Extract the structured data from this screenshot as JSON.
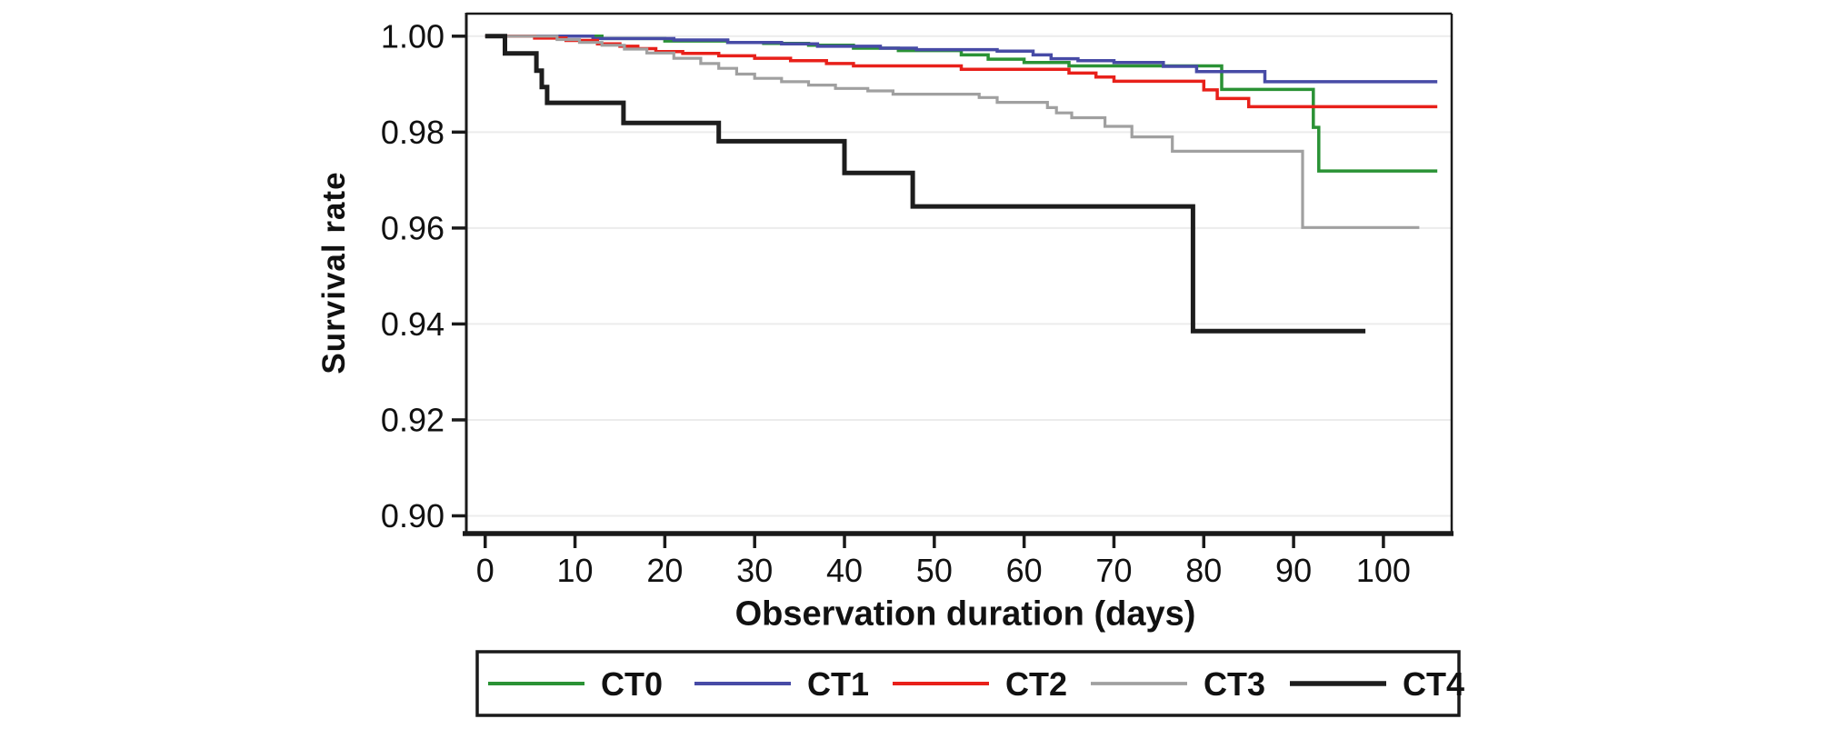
{
  "figure": {
    "background": "#ffffff"
  },
  "chart_data": {
    "type": "line",
    "subtype": "kaplan_meier_step",
    "title": "",
    "xlabel": "Observation duration (days)",
    "ylabel": "Survival rate",
    "xlim": [
      -2.1,
      107.6
    ],
    "ylim": [
      0.8963,
      1.0047
    ],
    "grid": "horizontal",
    "grid_color": "#ececec",
    "axis_color": "#1a1a1a",
    "text_color": "#111111",
    "x_ticks": [
      {
        "value": 0,
        "label": "0"
      },
      {
        "value": 10,
        "label": "10"
      },
      {
        "value": 20,
        "label": "20"
      },
      {
        "value": 30,
        "label": "30"
      },
      {
        "value": 40,
        "label": "40"
      },
      {
        "value": 50,
        "label": "50"
      },
      {
        "value": 60,
        "label": "60"
      },
      {
        "value": 70,
        "label": "70"
      },
      {
        "value": 80,
        "label": "80"
      },
      {
        "value": 90,
        "label": "90"
      },
      {
        "value": 100,
        "label": "100"
      }
    ],
    "y_ticks": [
      {
        "value": 1.0,
        "label": "1.00"
      },
      {
        "value": 0.98,
        "label": "0.98"
      },
      {
        "value": 0.96,
        "label": "0.96"
      },
      {
        "value": 0.94,
        "label": "0.94"
      },
      {
        "value": 0.92,
        "label": "0.92"
      },
      {
        "value": 0.9,
        "label": "0.90"
      }
    ],
    "legend": {
      "position": "bottom",
      "entries": [
        "CT0",
        "CT1",
        "CT2",
        "CT3",
        "CT4"
      ]
    },
    "series": [
      {
        "name": "CT0",
        "color": "#2a9235",
        "line_width": 3.5,
        "points": [
          [
            0,
            1.0
          ],
          [
            13,
            0.9995
          ],
          [
            20,
            0.999
          ],
          [
            27,
            0.9987
          ],
          [
            31,
            0.9985
          ],
          [
            36,
            0.9981
          ],
          [
            41,
            0.9975
          ],
          [
            46,
            0.997
          ],
          [
            53,
            0.9961
          ],
          [
            56,
            0.9952
          ],
          [
            60,
            0.9945
          ],
          [
            65,
            0.9938
          ],
          [
            82,
            0.9889
          ],
          [
            92.2,
            0.981
          ],
          [
            92.8,
            0.9719
          ],
          [
            106,
            0.9719
          ]
        ]
      },
      {
        "name": "CT1",
        "color": "#474ba6",
        "line_width": 3.5,
        "points": [
          [
            0,
            1.0
          ],
          [
            12,
            0.9995
          ],
          [
            21,
            0.9992
          ],
          [
            27,
            0.9987
          ],
          [
            33,
            0.9984
          ],
          [
            37,
            0.9979
          ],
          [
            44,
            0.9975
          ],
          [
            48,
            0.9972
          ],
          [
            57,
            0.9969
          ],
          [
            61,
            0.9961
          ],
          [
            63,
            0.9953
          ],
          [
            66,
            0.9949
          ],
          [
            70,
            0.9945
          ],
          [
            75.5,
            0.9937
          ],
          [
            79.2,
            0.9926
          ],
          [
            86.8,
            0.9905
          ],
          [
            106,
            0.9905
          ]
        ]
      },
      {
        "name": "CT2",
        "color": "#e8201a",
        "line_width": 3.5,
        "points": [
          [
            0,
            1.0
          ],
          [
            5.5,
            0.9996
          ],
          [
            9,
            0.9991
          ],
          [
            12.5,
            0.9984
          ],
          [
            15,
            0.9979
          ],
          [
            17,
            0.9974
          ],
          [
            19,
            0.9968
          ],
          [
            22,
            0.9964
          ],
          [
            26,
            0.9959
          ],
          [
            30,
            0.9954
          ],
          [
            34,
            0.9949
          ],
          [
            38,
            0.9943
          ],
          [
            41,
            0.9938
          ],
          [
            53,
            0.9931
          ],
          [
            65,
            0.9923
          ],
          [
            68,
            0.9915
          ],
          [
            70,
            0.9906
          ],
          [
            80,
            0.9888
          ],
          [
            81.5,
            0.987
          ],
          [
            85,
            0.9853
          ],
          [
            106,
            0.9853
          ]
        ]
      },
      {
        "name": "CT3",
        "color": "#a0a0a0",
        "line_width": 3.2,
        "points": [
          [
            0,
            1.0
          ],
          [
            8,
            0.9993
          ],
          [
            10.5,
            0.9987
          ],
          [
            13,
            0.9981
          ],
          [
            15.5,
            0.9973
          ],
          [
            18,
            0.9965
          ],
          [
            21,
            0.9954
          ],
          [
            24,
            0.9943
          ],
          [
            26,
            0.9933
          ],
          [
            28,
            0.9921
          ],
          [
            30,
            0.9912
          ],
          [
            33,
            0.9905
          ],
          [
            36,
            0.9898
          ],
          [
            39,
            0.9891
          ],
          [
            42.6,
            0.9886
          ],
          [
            45.4,
            0.9879
          ],
          [
            55,
            0.9872
          ],
          [
            57,
            0.9862
          ],
          [
            62.6,
            0.9851
          ],
          [
            63.6,
            0.984
          ],
          [
            65.3,
            0.983
          ],
          [
            69,
            0.9812
          ],
          [
            72,
            0.979
          ],
          [
            76.5,
            0.976
          ],
          [
            91,
            0.9601
          ],
          [
            104,
            0.9601
          ]
        ]
      },
      {
        "name": "CT4",
        "color": "#1d1d1d",
        "line_width": 5,
        "points": [
          [
            0,
            1.0
          ],
          [
            2.2,
            0.9964
          ],
          [
            5.7,
            0.9928
          ],
          [
            6.3,
            0.9894
          ],
          [
            6.9,
            0.9861
          ],
          [
            15.4,
            0.9819
          ],
          [
            26,
            0.9781
          ],
          [
            40,
            0.9715
          ],
          [
            47.6,
            0.9645
          ],
          [
            78.8,
            0.9385
          ],
          [
            98,
            0.9385
          ]
        ]
      }
    ]
  }
}
